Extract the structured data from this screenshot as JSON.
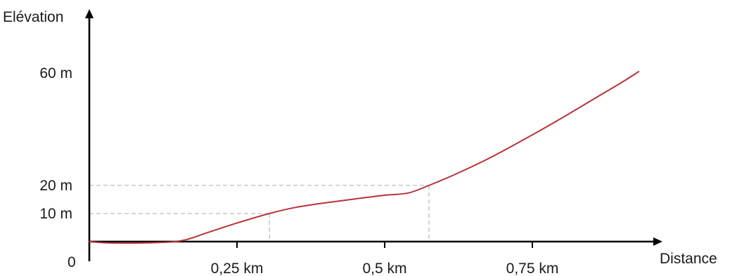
{
  "chart_data": {
    "type": "line",
    "ylabel": "Elévation",
    "xlabel": "Distance",
    "origin_label": "0",
    "x_ticks": [
      {
        "value": 0.25,
        "label": "0,25 km"
      },
      {
        "value": 0.5,
        "label": "0,5 km"
      },
      {
        "value": 0.75,
        "label": "0,75 km"
      }
    ],
    "y_ticks": [
      {
        "value": 10,
        "label": "10 m"
      },
      {
        "value": 20,
        "label": "20 m"
      },
      {
        "value": 60,
        "label": "60 m"
      }
    ],
    "xlim": [
      0,
      0.96
    ],
    "ylim": [
      0,
      66
    ],
    "guides": [
      {
        "x": 0.305,
        "y": 10
      },
      {
        "x": 0.575,
        "y": 20
      }
    ],
    "series": [
      {
        "color": "#b8333a",
        "points": [
          {
            "x": 0.0,
            "y": 0.0
          },
          {
            "x": 0.04,
            "y": -0.5
          },
          {
            "x": 0.12,
            "y": -0.3
          },
          {
            "x": 0.16,
            "y": 0.5
          },
          {
            "x": 0.2,
            "y": 3.2
          },
          {
            "x": 0.25,
            "y": 6.6
          },
          {
            "x": 0.305,
            "y": 10.0
          },
          {
            "x": 0.35,
            "y": 12.2
          },
          {
            "x": 0.4,
            "y": 13.8
          },
          {
            "x": 0.45,
            "y": 15.2
          },
          {
            "x": 0.5,
            "y": 16.5
          },
          {
            "x": 0.54,
            "y": 17.3
          },
          {
            "x": 0.575,
            "y": 20.0
          },
          {
            "x": 0.62,
            "y": 24.0
          },
          {
            "x": 0.68,
            "y": 30.0
          },
          {
            "x": 0.75,
            "y": 38.0
          },
          {
            "x": 0.8,
            "y": 44.0
          },
          {
            "x": 0.86,
            "y": 51.5
          },
          {
            "x": 0.9,
            "y": 56.5
          },
          {
            "x": 0.93,
            "y": 60.5
          }
        ]
      }
    ]
  }
}
